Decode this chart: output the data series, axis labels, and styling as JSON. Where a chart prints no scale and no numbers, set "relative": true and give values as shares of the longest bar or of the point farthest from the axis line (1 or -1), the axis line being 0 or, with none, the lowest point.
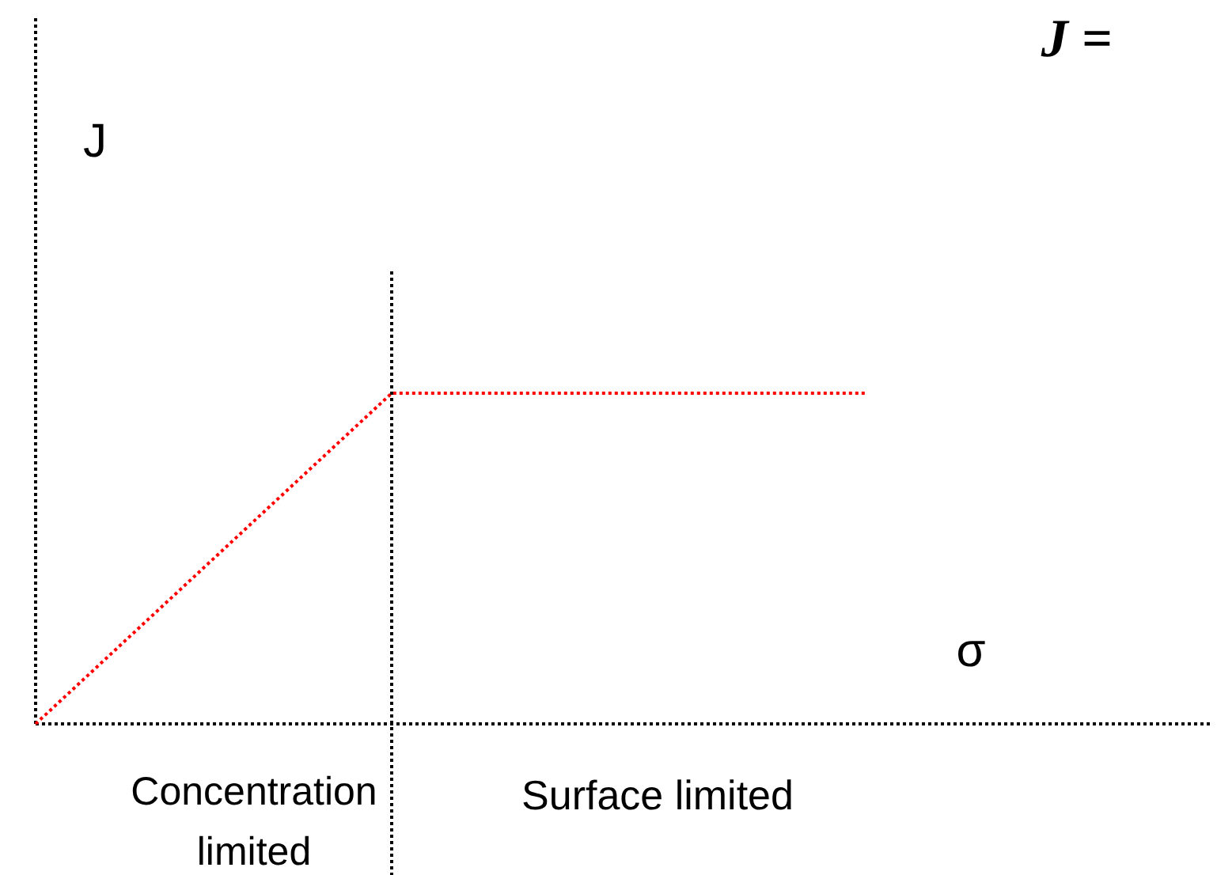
{
  "chart_data": {
    "type": "line",
    "relative": true,
    "xlabel": "σ",
    "ylabel": "J",
    "categories": [
      null,
      null,
      null,
      null,
      null,
      null,
      null,
      null
    ],
    "series": [
      {
        "color": "#ff0000",
        "values": [
          0,
          0.3333,
          0.6667,
          1,
          1,
          1,
          1,
          1
        ]
      }
    ],
    "line_style": "dotted",
    "marker": "none",
    "grid": false,
    "annotations": [
      "Concentration limited",
      "Surface limited",
      "J ="
    ]
  }
}
